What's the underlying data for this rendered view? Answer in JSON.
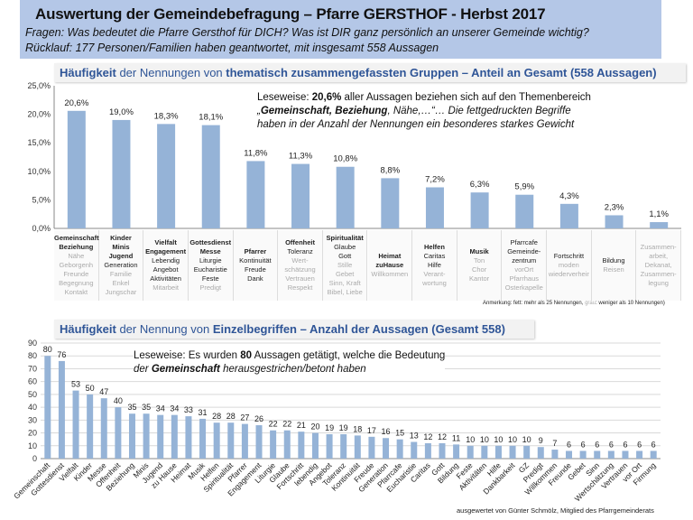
{
  "header": {
    "title": "Auswertung der Gemeindebefragung – Pfarre GERSTHOF  -  Herbst 2017",
    "question": "Fragen: Was bedeutet die Pfarre Gersthof für DICH? Was ist DIR ganz persönlich an unserer Gemeinde wichtig?",
    "response": "Rücklauf: 177 Personen/Familien haben geantwortet, mit insgesamt 558 Aussagen"
  },
  "chart1_title": {
    "a": "Häufigkeit",
    "b": " der Nennungen von  ",
    "c": "thematisch zusammengefassten Gruppen – Anteil an Gesamt (558 Aussagen)"
  },
  "chart1_note": {
    "l1a": "Leseweise: ",
    "l1b": "20,6%",
    "l1c": " aller  Aussagen beziehen sich auf den Themenbereich",
    "l2a": " „",
    "l2b": "Gemeinschaft, Beziehung",
    "l2c": ", Nähe,…“… Die fettgedruckten Begriffe",
    "l3": "haben in der Anzahl der Nennungen ein besonderes starkes Gewicht"
  },
  "chart1_remark": {
    "a": "Anmerkung: fett: mehr als 25 Nennungen, ",
    "b": "grau",
    "c": ": weniger als 10 Nennungen)"
  },
  "chart2_title": {
    "a": "Häufigkeit",
    "b": " der Nennung von ",
    "c": "Einzelbegriffen – Anzahl der Aussagen (Gesamt 558)"
  },
  "chart2_note": {
    "l1a": "Leseweise: Es wurden ",
    "l1b": "80",
    "l1c": " Aussagen getätigt, welche die Bedeutung",
    "l2a": " der ",
    "l2b": "Gemeinschaft",
    "l2c": " herausgestrichen/betont haben"
  },
  "footer": "ausgewertet von Günter Schmölz, Mitglied des Pfarrgemeinderats",
  "colors": {
    "bar": "#95b3d7",
    "header": "#b4c7e7",
    "title_text": "#2f5597"
  },
  "chart_data": [
    {
      "type": "bar",
      "ylim": [
        0,
        25
      ],
      "yticks": [
        "0,0%",
        "5,0%",
        "10,0%",
        "15,0%",
        "20,0%",
        "25,0%"
      ],
      "ytick_values": [
        0,
        5,
        10,
        15,
        20,
        25
      ],
      "grid": false,
      "values": [
        20.6,
        19.0,
        18.3,
        18.1,
        11.8,
        11.3,
        10.8,
        8.8,
        7.2,
        6.3,
        5.9,
        4.3,
        2.3,
        1.1
      ],
      "labels": [
        "20,6%",
        "19,0%",
        "18,3%",
        "18,1%",
        "11,8%",
        "11,3%",
        "10,8%",
        "8,8%",
        "7,2%",
        "6,3%",
        "5,9%",
        "4,3%",
        "2,3%",
        "1,1%"
      ],
      "categories": [
        [
          [
            "b",
            "Gemeinschaft"
          ],
          [
            "b",
            "Beziehung"
          ],
          [
            "g",
            "Nähe"
          ],
          [
            "g",
            "Geborgenh"
          ],
          [
            "g",
            "Freunde"
          ],
          [
            "g",
            "Begegnung"
          ],
          [
            "g",
            "Kontakt"
          ]
        ],
        [
          [
            "b",
            "Kinder"
          ],
          [
            "b",
            "Minis"
          ],
          [
            "b",
            "Jugend"
          ],
          [
            "n",
            "Generation"
          ],
          [
            "g",
            "Familie"
          ],
          [
            "g",
            "Enkel"
          ],
          [
            "g",
            "Jungschar"
          ]
        ],
        [
          [
            "b",
            "Vielfalt"
          ],
          [
            "b",
            "Engagement"
          ],
          [
            "n",
            "Lebendig"
          ],
          [
            "n",
            "Angebot"
          ],
          [
            "n",
            "Aktivitäten"
          ],
          [
            "g",
            "Mitarbeit"
          ]
        ],
        [
          [
            "b",
            "Gottesdienst"
          ],
          [
            "b",
            "Messe"
          ],
          [
            "n",
            "Liturgie"
          ],
          [
            "n",
            "Eucharistie"
          ],
          [
            "n",
            "Feste"
          ],
          [
            "g",
            "Predigt"
          ]
        ],
        [
          [
            "b",
            "Pfarrer"
          ],
          [
            "n",
            "Kontinuität"
          ],
          [
            "n",
            "Freude"
          ],
          [
            "n",
            "Dank"
          ]
        ],
        [
          [
            "b",
            "Offenheit"
          ],
          [
            "n",
            "Toleranz"
          ],
          [
            "g",
            "Wert-"
          ],
          [
            "g",
            "schätzung"
          ],
          [
            "g",
            "Vertrauen"
          ],
          [
            "g",
            "Respekt"
          ]
        ],
        [
          [
            "b",
            "Spiritualität"
          ],
          [
            "n",
            "Glaube"
          ],
          [
            "n",
            "Gott"
          ],
          [
            "g",
            "Stille"
          ],
          [
            "g",
            "Gebet"
          ],
          [
            "g",
            "Sinn, Kraft"
          ],
          [
            "g",
            "Bibel, Liebe"
          ]
        ],
        [
          [
            "b",
            "Heimat"
          ],
          [
            "b",
            "zuHause"
          ],
          [
            "g",
            "Willkommen"
          ]
        ],
        [
          [
            "b",
            "Helfen"
          ],
          [
            "n",
            "Caritas"
          ],
          [
            "n",
            "Hilfe"
          ],
          [
            "g",
            "Verant-"
          ],
          [
            "g",
            "wortung"
          ]
        ],
        [
          [
            "b",
            "Musik"
          ],
          [
            "g",
            "Ton"
          ],
          [
            "g",
            "Chor"
          ],
          [
            "g",
            "Kantor"
          ]
        ],
        [
          [
            "n",
            "Pfarrcafe"
          ],
          [
            "n",
            "Gemeinde-"
          ],
          [
            "n",
            "zentrum"
          ],
          [
            "g",
            "vorOrt"
          ],
          [
            "g",
            "Pfarrhaus"
          ],
          [
            "g",
            "Osterkapelle"
          ]
        ],
        [
          [
            "n",
            "Fortschritt"
          ],
          [
            "g",
            "moden"
          ],
          [
            "g",
            "wiederverheir"
          ]
        ],
        [
          [
            "n",
            "Bildung"
          ],
          [
            "g",
            "Reisen"
          ]
        ],
        [
          [
            "g",
            "Zusammen-"
          ],
          [
            "g",
            "arbeit,"
          ],
          [
            "g",
            "Dekanat,"
          ],
          [
            "g",
            "Zusammen-"
          ],
          [
            "g",
            "legung"
          ]
        ]
      ]
    },
    {
      "type": "bar",
      "ylim": [
        0,
        90
      ],
      "yticks": [
        "0",
        "10",
        "20",
        "30",
        "40",
        "50",
        "60",
        "70",
        "80",
        "90"
      ],
      "ytick_values": [
        0,
        10,
        20,
        30,
        40,
        50,
        60,
        70,
        80,
        90
      ],
      "grid": true,
      "categories": [
        "Gemeinschaft",
        "Gottesdienst",
        "Vielfalt",
        "Kinder",
        "Messe",
        "Offenheit",
        "Beziehung",
        "Minis",
        "Jugend",
        "zu Hause",
        "Heimat",
        "Musik",
        "Helfen",
        "Spiritualität",
        "Pfarrer",
        "Engagement",
        "Liturgie",
        "Glaube",
        "Fortschritt",
        "lebendig",
        "Angebot",
        "Toleranz",
        "Kontinuität",
        "Freude",
        "Generation",
        "Pfarrcafe",
        "Eucharistie",
        "Caritas",
        "Gott",
        "Bildung",
        "Feste",
        "Aktivitäten",
        "Hilfe",
        "Dankbarkeit",
        "GZ",
        "Predigt",
        "Willkommen",
        "Freunde",
        "Gebet",
        "Sinn",
        "Wertschätzung",
        "Vertrauen",
        "vor Ort",
        "Firmung"
      ],
      "values": [
        80,
        76,
        53,
        50,
        47,
        40,
        35,
        35,
        34,
        34,
        33,
        31,
        28,
        28,
        27,
        26,
        22,
        22,
        21,
        20,
        19,
        19,
        18,
        17,
        16,
        15,
        13,
        12,
        12,
        11,
        10,
        10,
        10,
        10,
        10,
        9,
        7,
        6,
        6,
        6,
        6,
        6,
        6,
        6
      ]
    }
  ]
}
